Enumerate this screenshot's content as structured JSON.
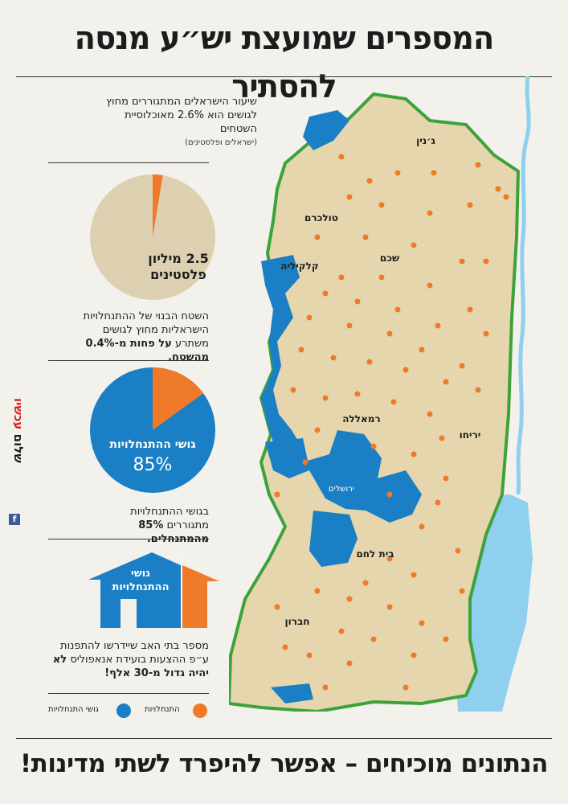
{
  "headline": "המספרים שמועצת יש״ע מנסה להסתיר",
  "stat1": {
    "text": "שיעור הישראלים המתגוררים מחוץ לגושים הוא 2.6% מאוכלוסיית השטחים",
    "note": "(ישראלים ופלסטינים)"
  },
  "pie1": {
    "label_line1": "2.5 מיליון",
    "label_line2": "פלסטינים",
    "slice_fraction": 0.026,
    "colors": {
      "main": "#ddd0b0",
      "slice": "#ee7a2a"
    }
  },
  "stat2": {
    "text": "השטח הבנוי של ההתנחלויות הישראליות מחוץ לגושים משתרע",
    "bold": "על פחות מ-0.4% מהשטח."
  },
  "pie2": {
    "label_line1": "גושי ההתנחלויות",
    "label_line2": "85%",
    "blue_fraction": 0.85,
    "colors": {
      "main": "#1a7fc4",
      "slice": "#ee7a2a"
    }
  },
  "stat3": {
    "text": "בגושי ההתנחלויות מתגוררים",
    "bold": "85% מהמתנחלים."
  },
  "house": {
    "label_line1": "גושי",
    "label_line2": "ההתנחלויות",
    "colors": {
      "blue": "#1a7fc4",
      "orange": "#ee7a2a"
    }
  },
  "stat4": {
    "text": "מספר בתי האב שיידרשו להתפנות ע״פ ההצעות בועידת אנאפוליס",
    "bold": "לא יהיה גדול מ-30 אלף!"
  },
  "legend": {
    "blocs": "גושי התנחלויות",
    "settlements": "התנחלויות",
    "colors": {
      "blocs": "#1a7fc4",
      "settlements": "#ee7a2a"
    }
  },
  "map": {
    "colors": {
      "land": "#e6d6ad",
      "border": "#3ea23a",
      "water": "#8fd0ee",
      "blocs": "#1a7fc4",
      "dots": "#ee7a2a"
    },
    "cities": {
      "jenin": "ג׳נין",
      "tulkarm": "טולכרם",
      "qalqilya": "קלקיליה",
      "nablus": "שכם",
      "ramallah": "רמאללה",
      "jericho": "יריחו",
      "jerusalem": "ירושלים",
      "bethlehem": "בית לחם",
      "hebron": "חברון"
    }
  },
  "footer": "הנתונים מוכיחים – אפשר להיפרד לשתי מדינות!",
  "brand": {
    "word1": "שלום",
    "word2": "עכשיו",
    "fb": "f"
  }
}
